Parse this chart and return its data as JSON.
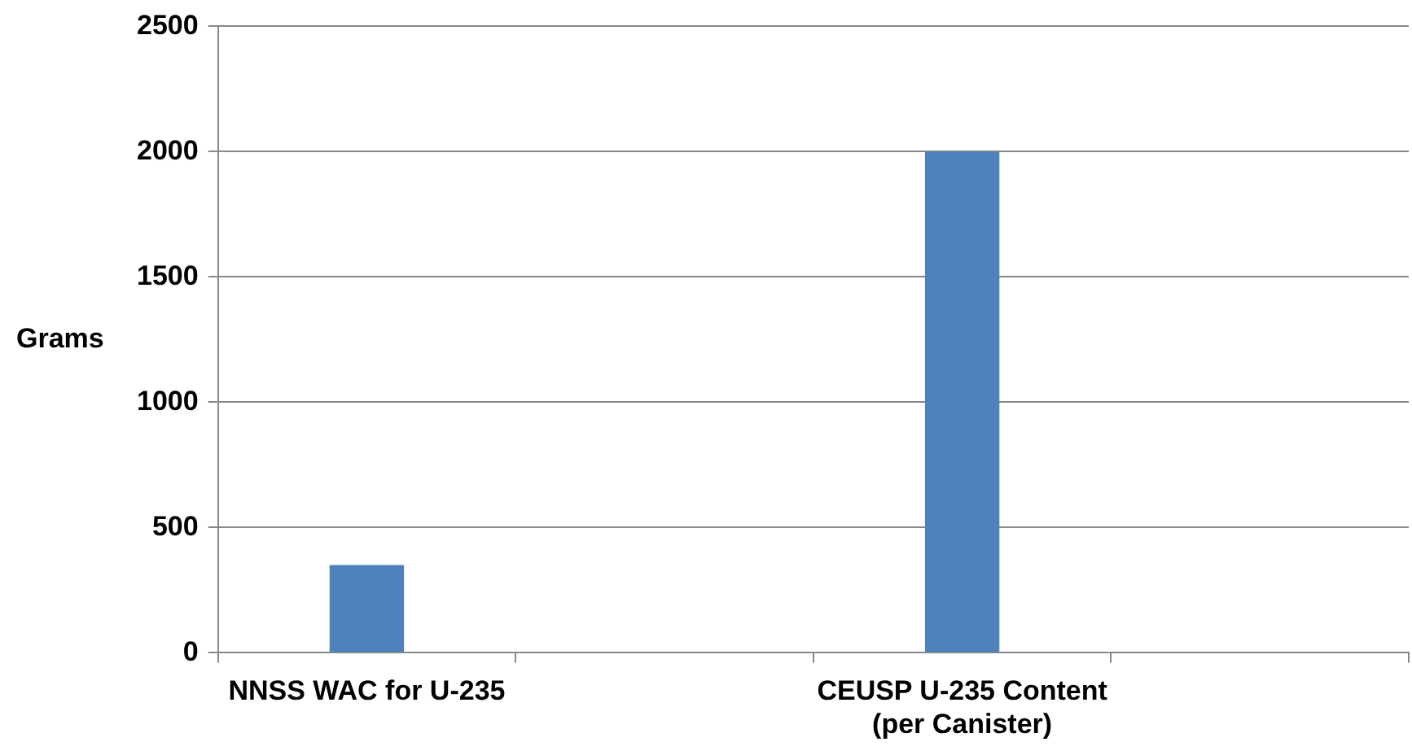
{
  "chart_data": {
    "type": "bar",
    "ylabel": "Grams",
    "categories": [
      "NNSS WAC for U-235",
      null,
      "CEUSP U-235 Content (per Canister)",
      null
    ],
    "series": [
      {
        "color": "#4f81bd",
        "values": [
          350,
          null,
          2000,
          null
        ]
      }
    ],
    "ylim": [
      0,
      2500
    ],
    "yticks": [
      0,
      500,
      1000,
      1500,
      2000,
      2500
    ],
    "grid": "y",
    "legend": false
  }
}
